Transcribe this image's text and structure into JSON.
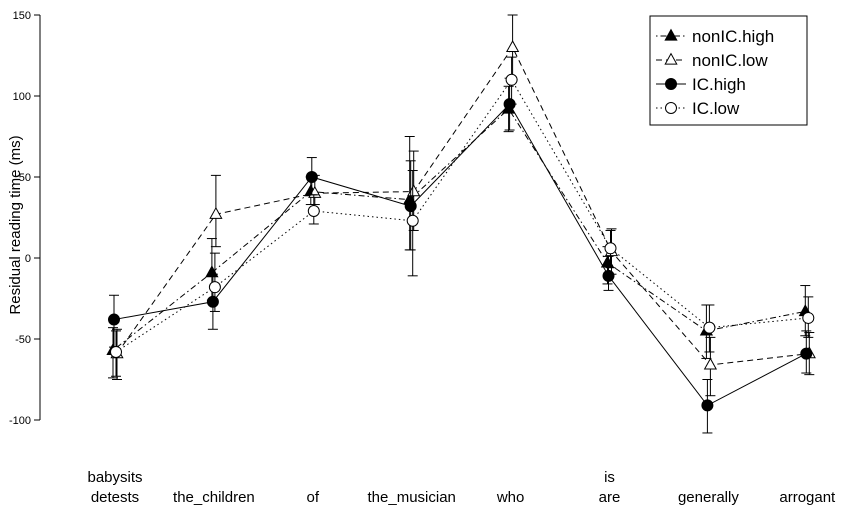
{
  "chart_data": {
    "type": "line",
    "title": "",
    "xlabel": "",
    "ylabel": "Residual reading time (ms)",
    "ylim": [
      -100,
      150
    ],
    "yticks": [
      -100,
      -50,
      0,
      50,
      100,
      150
    ],
    "categories": [
      {
        "top": "babysits",
        "bottom": "detests"
      },
      {
        "top": "",
        "bottom": "the_children"
      },
      {
        "top": "",
        "bottom": "of"
      },
      {
        "top": "",
        "bottom": "the_musician"
      },
      {
        "top": "",
        "bottom": "who"
      },
      {
        "top": "is",
        "bottom": "are"
      },
      {
        "top": "",
        "bottom": "generally"
      },
      {
        "top": "",
        "bottom": "arrogant"
      }
    ],
    "legend_position": "top-right",
    "series": [
      {
        "name": "nonIC.high",
        "marker": "filled-triangle",
        "dash": "dotdash",
        "values": [
          -57,
          -9,
          41,
          36,
          92,
          -3,
          -45,
          -33
        ],
        "err_low": [
          -74,
          -26,
          33,
          5,
          78,
          -16,
          -62,
          -48
        ],
        "err_high": [
          -43,
          12,
          50,
          75,
          106,
          7,
          -29,
          -17
        ]
      },
      {
        "name": "nonIC.low",
        "marker": "open-triangle",
        "dash": "dashed",
        "values": [
          -59,
          27,
          40,
          41,
          130,
          4,
          -66,
          -59
        ],
        "err_low": [
          -75,
          7,
          33,
          17,
          110,
          -10,
          -85,
          -72
        ],
        "err_high": [
          -44,
          51,
          51,
          66,
          150,
          18,
          -49,
          -46
        ]
      },
      {
        "name": "IC.high",
        "marker": "filled-circle",
        "dash": "solid",
        "values": [
          -38,
          -27,
          50,
          32,
          95,
          -11,
          -91,
          -59
        ],
        "err_low": [
          -55,
          -44,
          39,
          5,
          79,
          -20,
          -108,
          -71
        ],
        "err_high": [
          -23,
          -10,
          62,
          60,
          111,
          1,
          -75,
          -45
        ]
      },
      {
        "name": "IC.low",
        "marker": "open-circle",
        "dash": "dotted",
        "values": [
          -58,
          -18,
          29,
          23,
          110,
          6,
          -43,
          -37
        ],
        "err_low": [
          -73,
          -33,
          21,
          -11,
          95,
          -6,
          -58,
          -49
        ],
        "err_high": [
          -45,
          3,
          39,
          54,
          124,
          17,
          -29,
          -24
        ]
      }
    ]
  }
}
